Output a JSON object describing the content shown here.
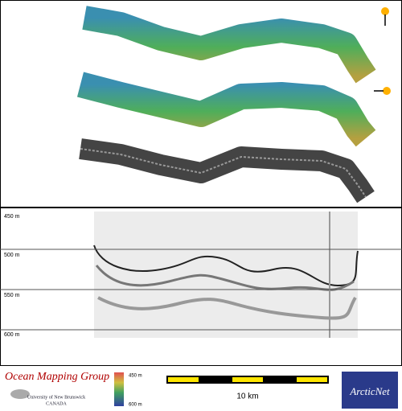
{
  "profile": {
    "depth_labels": [
      "450 m",
      "500 m",
      "550 m",
      "600 m"
    ]
  },
  "footer": {
    "group_name": "Ocean Mapping Group",
    "university": "University of New Brunswick",
    "country": "CANADA",
    "colorbar_labels": [
      "450 m",
      "600 m"
    ],
    "scale_label": "10 km",
    "partner_logo": "ArcticNet"
  }
}
